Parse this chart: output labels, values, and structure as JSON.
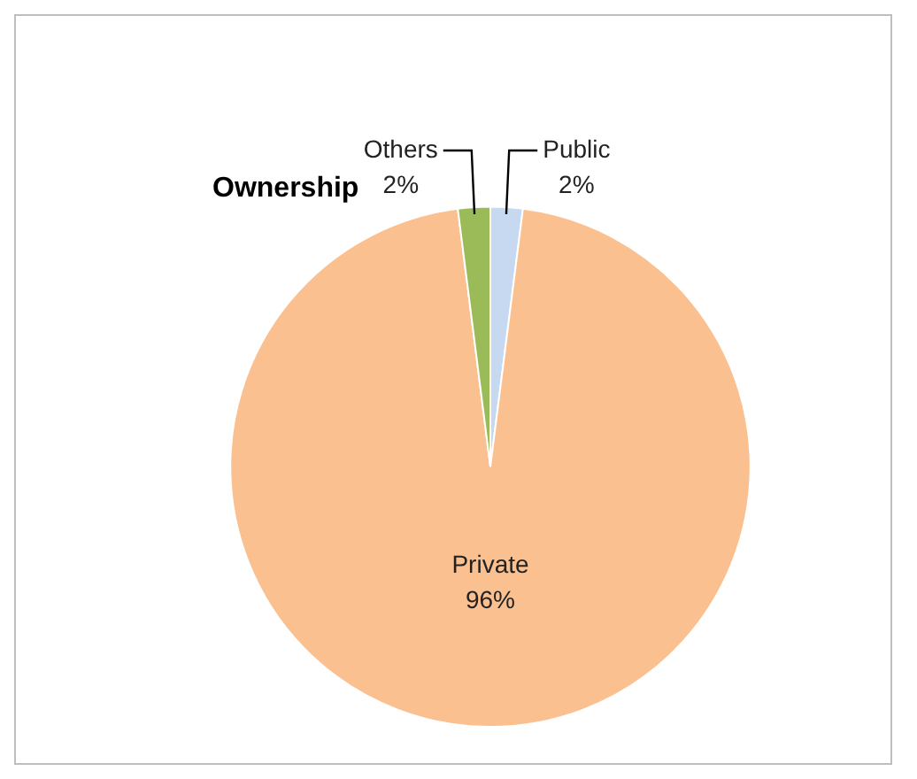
{
  "chart_data": {
    "type": "pie",
    "title": "Ownership",
    "categories": [
      "Public",
      "Private",
      "Others"
    ],
    "values": [
      2,
      96,
      2
    ],
    "colors": [
      "#c6d9f1",
      "#fac090",
      "#9bbb59"
    ],
    "value_labels": [
      "2%",
      "96%",
      "2%"
    ],
    "legend": false
  }
}
